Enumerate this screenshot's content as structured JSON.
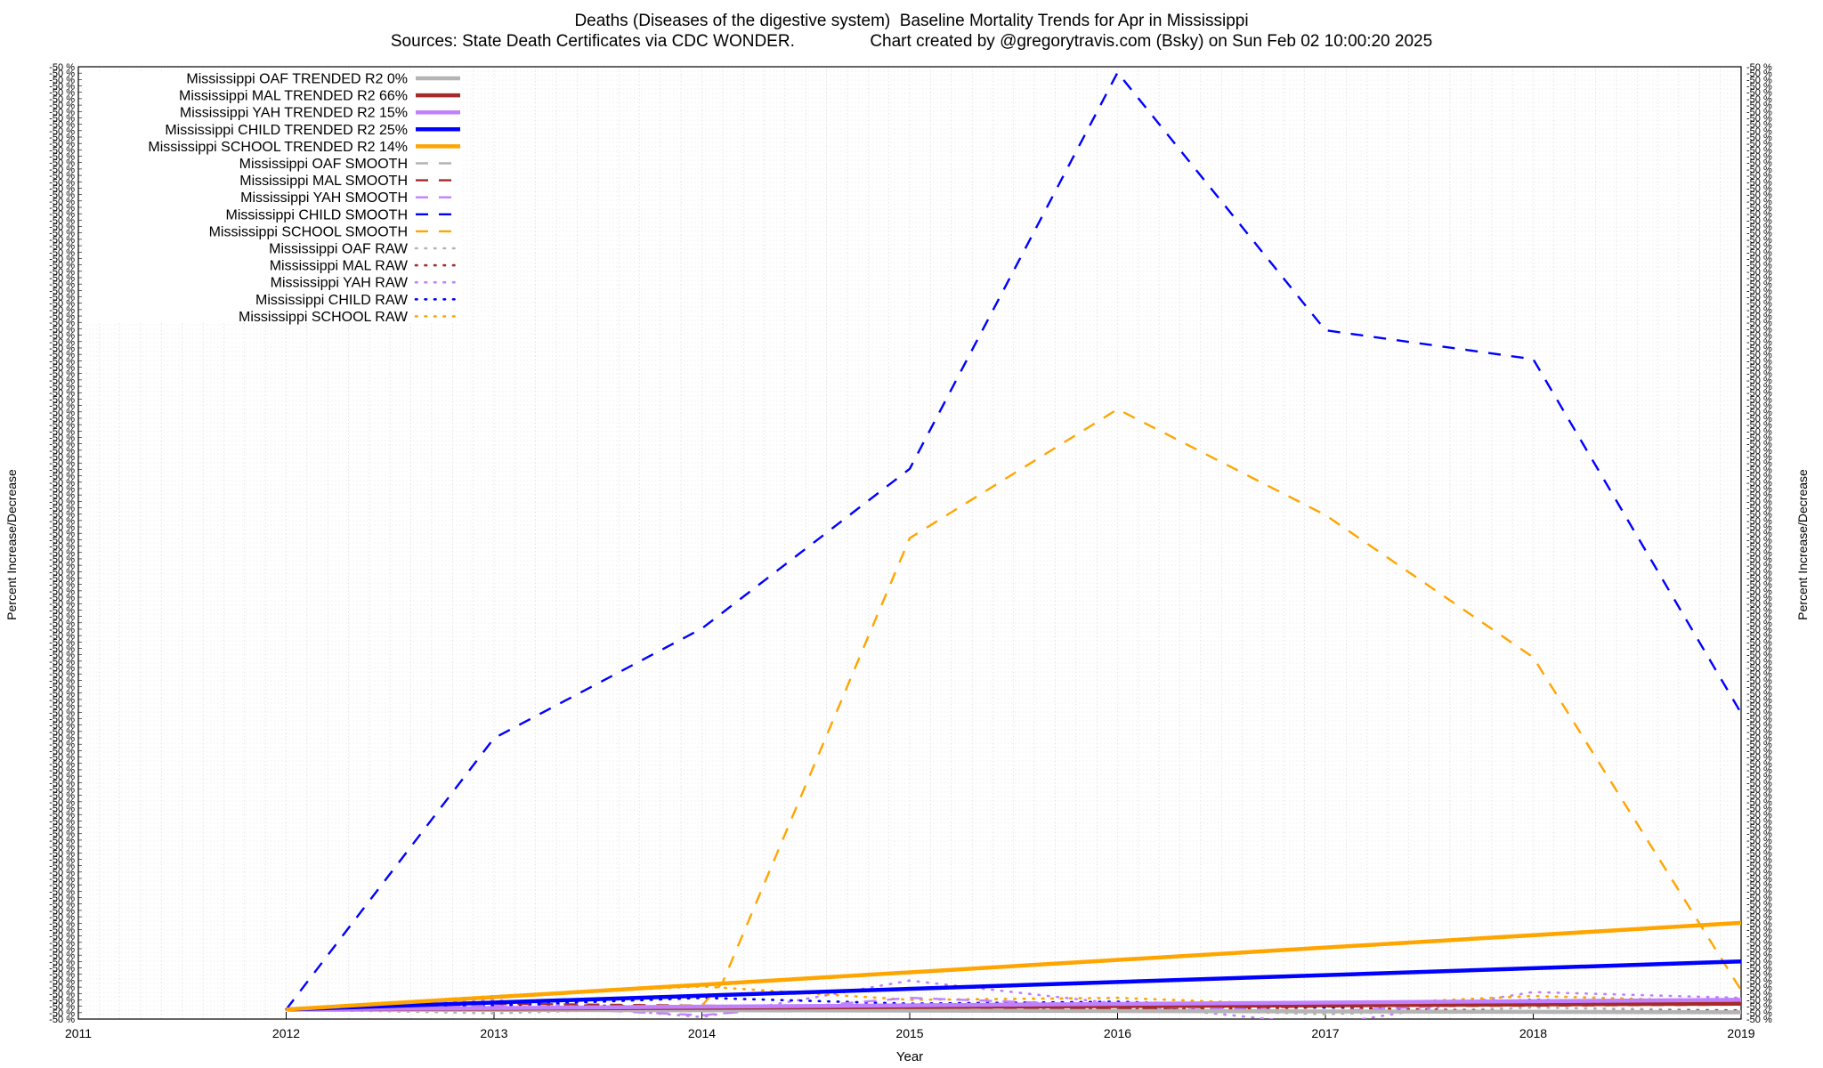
{
  "chart_data": {
    "type": "line",
    "title": "Deaths (Diseases of the digestive system)  Baseline Mortality Trends for Apr in Mississippi",
    "subtitle_left": "Sources: State Death Certificates via CDC WONDER.",
    "subtitle_right": "Chart created by @gregorytravis.com (Bsky) on Sun Feb 02 10:00:20 2025",
    "xlabel": "Year",
    "ylabel": "Percent Increase/Decrease",
    "ylabel_right": "Percent Increase/Decrease",
    "xlim": [
      2011,
      2019
    ],
    "ylim": [
      -50,
      4900
    ],
    "x_ticks": [
      "2011",
      "2012",
      "2013",
      "2014",
      "2015",
      "2016",
      "2017",
      "2018",
      "2019"
    ],
    "y_tick_label_sample": "-50 %",
    "grid": true,
    "legend_position": "top-left",
    "colors": {
      "oaf": "#b4b4b4",
      "mal": "#a52a2a",
      "yah": "#c080ff",
      "child": "#0000ff",
      "school": "#ffa500"
    },
    "series": [
      {
        "name": "Mississippi OAF TRENDED R2  0%",
        "group": "oaf",
        "style": "trended",
        "x": [
          2012,
          2019
        ],
        "values": [
          0,
          -15
        ]
      },
      {
        "name": "Mississippi MAL TRENDED R2  66%",
        "group": "mal",
        "style": "trended",
        "x": [
          2012,
          2019
        ],
        "values": [
          0,
          30
        ]
      },
      {
        "name": "Mississippi YAH TRENDED R2  15%",
        "group": "yah",
        "style": "trended",
        "x": [
          2012,
          2019
        ],
        "values": [
          0,
          50
        ]
      },
      {
        "name": "Mississippi CHILD TRENDED R2  25%",
        "group": "child",
        "style": "trended",
        "x": [
          2012,
          2019
        ],
        "values": [
          0,
          250
        ]
      },
      {
        "name": "Mississippi SCHOOL TRENDED R2  14%",
        "group": "school",
        "style": "trended",
        "x": [
          2012,
          2019
        ],
        "values": [
          0,
          450
        ]
      },
      {
        "name": "Mississippi OAF SMOOTH",
        "group": "oaf",
        "style": "smooth",
        "x": [
          2012,
          2013,
          2014,
          2015,
          2016,
          2017,
          2018,
          2019
        ],
        "values": [
          0,
          -5,
          -10,
          -5,
          -8,
          -12,
          -10,
          -12
        ]
      },
      {
        "name": "Mississippi MAL SMOOTH",
        "group": "mal",
        "style": "smooth",
        "x": [
          2012,
          2013,
          2014,
          2015,
          2016,
          2017,
          2018,
          2019
        ],
        "values": [
          0,
          30,
          20,
          10,
          5,
          15,
          20,
          25
        ]
      },
      {
        "name": "Mississippi YAH SMOOTH",
        "group": "yah",
        "style": "smooth",
        "x": [
          2012,
          2013,
          2014,
          2015,
          2016,
          2017,
          2018,
          2019
        ],
        "values": [
          0,
          20,
          -30,
          60,
          20,
          -10,
          40,
          50
        ]
      },
      {
        "name": "Mississippi CHILD SMOOTH",
        "group": "child",
        "style": "smooth",
        "x": [
          2012,
          2013,
          2014,
          2015,
          2016,
          2017,
          2018,
          2019
        ],
        "values": [
          0,
          1410,
          1980,
          2810,
          4870,
          3530,
          3380,
          1540
        ]
      },
      {
        "name": "Mississippi SCHOOL SMOOTH",
        "group": "school",
        "style": "smooth",
        "x": [
          2012,
          2013,
          2014,
          2014.1,
          2015,
          2016,
          2017,
          2018,
          2019
        ],
        "values": [
          0,
          10,
          20,
          140,
          2450,
          3120,
          2570,
          1830,
          100
        ]
      },
      {
        "name": "Mississippi OAF RAW",
        "group": "oaf",
        "style": "raw",
        "x": [
          2012,
          2013,
          2014,
          2015,
          2016,
          2017,
          2018,
          2019
        ],
        "values": [
          0,
          -20,
          10,
          -10,
          5,
          -25,
          10,
          -5
        ]
      },
      {
        "name": "Mississippi MAL RAW",
        "group": "mal",
        "style": "raw",
        "x": [
          2012,
          2013,
          2014,
          2015,
          2016,
          2017,
          2018,
          2019
        ],
        "values": [
          0,
          30,
          10,
          20,
          0,
          10,
          -10,
          -5
        ]
      },
      {
        "name": "Mississippi YAH RAW",
        "group": "yah",
        "style": "raw",
        "x": [
          2012,
          2013,
          2014,
          2015,
          2016,
          2017,
          2018,
          2019
        ],
        "values": [
          0,
          50,
          -40,
          150,
          30,
          -80,
          90,
          60
        ]
      },
      {
        "name": "Mississippi CHILD RAW",
        "group": "child",
        "style": "raw",
        "x": [
          2012,
          2013,
          2014,
          2015,
          2016,
          2017,
          2018,
          2019
        ],
        "values": [
          0,
          20,
          60,
          30,
          40,
          10,
          50,
          30
        ]
      },
      {
        "name": "Mississippi SCHOOL RAW",
        "group": "school",
        "style": "raw",
        "x": [
          2012,
          2013,
          2014,
          2015,
          2016,
          2017,
          2018,
          2019
        ],
        "values": [
          0,
          70,
          120,
          50,
          60,
          20,
          70,
          40
        ]
      }
    ]
  }
}
